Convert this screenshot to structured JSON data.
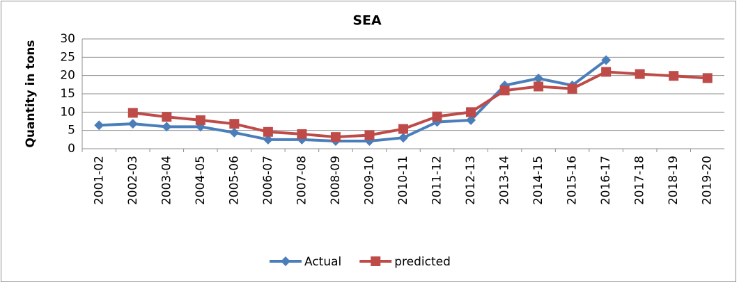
{
  "chart_data": {
    "type": "line",
    "title": "SEA",
    "y_label": "Quantity in tons",
    "categories": [
      "2001-02",
      "2002-03",
      "2003-04",
      "2004-05",
      "2005-06",
      "2006-07",
      "2007-08",
      "2008-09",
      "2009-10",
      "2010-11",
      "2011-12",
      "2012-13",
      "2013-14",
      "2014-15",
      "2015-16",
      "2016-17",
      "2017-18",
      "2018-19",
      "2019-20"
    ],
    "series": [
      {
        "name": "Actual",
        "color": "#4a7ebb",
        "marker": "diamond",
        "values": [
          6.4,
          6.8,
          6.0,
          6.0,
          4.4,
          2.5,
          2.5,
          2.1,
          2.1,
          3.0,
          7.3,
          7.8,
          17.3,
          19.2,
          17.3,
          24.2,
          null,
          null,
          null
        ]
      },
      {
        "name": "predicted",
        "color": "#be4b48",
        "marker": "square",
        "values": [
          null,
          9.8,
          8.7,
          7.8,
          6.8,
          4.6,
          4.0,
          3.2,
          3.7,
          5.4,
          8.8,
          10.0,
          15.9,
          17.0,
          16.4,
          21.0,
          20.4,
          19.9,
          19.3
        ]
      }
    ],
    "ylim": [
      0,
      30
    ],
    "yticks": [
      0,
      5,
      10,
      15,
      20,
      25,
      30
    ],
    "grid": true,
    "legend": "bottom"
  }
}
